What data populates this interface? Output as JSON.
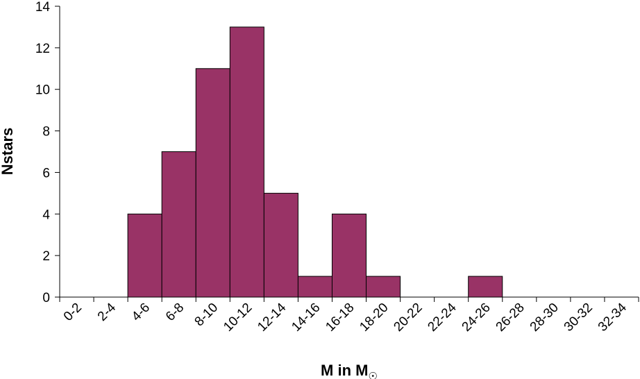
{
  "chart_data": {
    "type": "bar",
    "title": "",
    "xlabel": "M in M",
    "xlabel_sub": "☉",
    "ylabel": "Nstars",
    "ylim": [
      0,
      14
    ],
    "yticks": [
      0,
      2,
      4,
      6,
      8,
      10,
      12,
      14
    ],
    "grid": false,
    "legend": "none",
    "bar_color": "#993366",
    "categories": [
      "0-2",
      "2-4",
      "4-6",
      "6-8",
      "8-10",
      "10-12",
      "12-14",
      "14-16",
      "16-18",
      "18-20",
      "20-22",
      "22-24",
      "24-26",
      "26-28",
      "28-30",
      "30-32",
      "32-34"
    ],
    "values": [
      0,
      0,
      4,
      7,
      11,
      13,
      5,
      1,
      4,
      1,
      0,
      0,
      1,
      0,
      0,
      0,
      0
    ]
  }
}
